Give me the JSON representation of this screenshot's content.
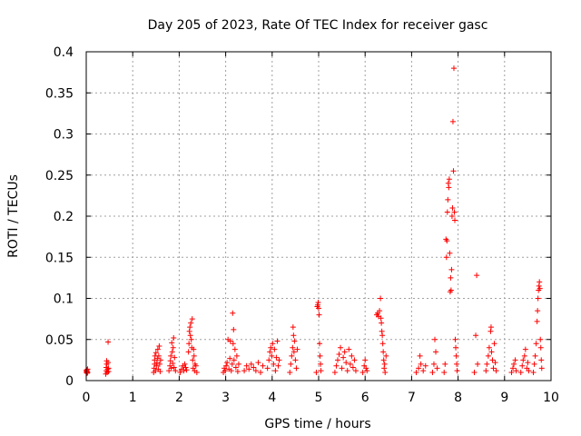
{
  "chart_data": {
    "type": "scatter",
    "title": "Day 205 of 2023, Rate Of TEC Index for receiver gasc",
    "xlabel": "GPS time / hours",
    "ylabel": "ROTI / TECUs",
    "xlim": [
      0,
      10
    ],
    "ylim": [
      0,
      0.4
    ],
    "xticks": [
      0,
      1,
      2,
      3,
      4,
      5,
      6,
      7,
      8,
      9,
      10
    ],
    "xtick_labels": [
      "0",
      "1",
      "2",
      "3",
      "4",
      "5",
      "6",
      "7",
      "8",
      "9",
      "10"
    ],
    "yticks": [
      0,
      0.05,
      0.1,
      0.15,
      0.2,
      0.25,
      0.3,
      0.35,
      0.4
    ],
    "ytick_labels": [
      "0",
      "0.05",
      "0.1",
      "0.15",
      "0.2",
      "0.25",
      "0.3",
      "0.35",
      "0.4"
    ],
    "grid": true,
    "marker": "+",
    "color": "#ff0000",
    "series": [
      {
        "name": "ROTI",
        "points": [
          [
            0.0,
            0.01
          ],
          [
            0.0,
            0.012
          ],
          [
            0.01,
            0.013
          ],
          [
            0.02,
            0.009
          ],
          [
            0.02,
            0.011
          ],
          [
            0.03,
            0.014
          ],
          [
            0.03,
            0.01
          ],
          [
            0.42,
            0.008
          ],
          [
            0.43,
            0.012
          ],
          [
            0.43,
            0.016
          ],
          [
            0.44,
            0.02
          ],
          [
            0.44,
            0.024
          ],
          [
            0.45,
            0.01
          ],
          [
            0.46,
            0.014
          ],
          [
            0.47,
            0.047
          ],
          [
            0.47,
            0.022
          ],
          [
            0.48,
            0.011
          ],
          [
            0.48,
            0.015
          ],
          [
            1.45,
            0.01
          ],
          [
            1.46,
            0.015
          ],
          [
            1.47,
            0.02
          ],
          [
            1.47,
            0.025
          ],
          [
            1.48,
            0.03
          ],
          [
            1.49,
            0.012
          ],
          [
            1.5,
            0.034
          ],
          [
            1.51,
            0.018
          ],
          [
            1.52,
            0.022
          ],
          [
            1.53,
            0.027
          ],
          [
            1.54,
            0.038
          ],
          [
            1.55,
            0.014
          ],
          [
            1.56,
            0.03
          ],
          [
            1.57,
            0.042
          ],
          [
            1.58,
            0.02
          ],
          [
            1.59,
            0.011
          ],
          [
            1.6,
            0.025
          ],
          [
            1.78,
            0.012
          ],
          [
            1.8,
            0.018
          ],
          [
            1.81,
            0.024
          ],
          [
            1.82,
            0.03
          ],
          [
            1.83,
            0.015
          ],
          [
            1.84,
            0.046
          ],
          [
            1.85,
            0.035
          ],
          [
            1.86,
            0.021
          ],
          [
            1.87,
            0.04
          ],
          [
            1.88,
            0.052
          ],
          [
            1.89,
            0.016
          ],
          [
            1.9,
            0.028
          ],
          [
            1.92,
            0.012
          ],
          [
            2.02,
            0.01
          ],
          [
            2.05,
            0.014
          ],
          [
            2.08,
            0.018
          ],
          [
            2.1,
            0.012
          ],
          [
            2.12,
            0.02
          ],
          [
            2.14,
            0.016
          ],
          [
            2.16,
            0.013
          ],
          [
            2.2,
            0.035
          ],
          [
            2.21,
            0.045
          ],
          [
            2.22,
            0.06
          ],
          [
            2.23,
            0.065
          ],
          [
            2.24,
            0.055
          ],
          [
            2.25,
            0.07
          ],
          [
            2.26,
            0.05
          ],
          [
            2.27,
            0.04
          ],
          [
            2.28,
            0.075
          ],
          [
            2.29,
            0.025
          ],
          [
            2.3,
            0.015
          ],
          [
            2.31,
            0.038
          ],
          [
            2.32,
            0.03
          ],
          [
            2.33,
            0.012
          ],
          [
            2.34,
            0.02
          ],
          [
            2.36,
            0.018
          ],
          [
            2.38,
            0.01
          ],
          [
            2.95,
            0.01
          ],
          [
            2.97,
            0.015
          ],
          [
            2.99,
            0.012
          ],
          [
            3.01,
            0.018
          ],
          [
            3.03,
            0.022
          ],
          [
            3.05,
            0.05
          ],
          [
            3.07,
            0.014
          ],
          [
            3.09,
            0.027
          ],
          [
            3.1,
            0.048
          ],
          [
            3.12,
            0.012
          ],
          [
            3.14,
            0.02
          ],
          [
            3.15,
            0.082
          ],
          [
            3.16,
            0.045
          ],
          [
            3.17,
            0.062
          ],
          [
            3.18,
            0.025
          ],
          [
            3.2,
            0.038
          ],
          [
            3.22,
            0.016
          ],
          [
            3.24,
            0.03
          ],
          [
            3.26,
            0.011
          ],
          [
            3.28,
            0.02
          ],
          [
            3.4,
            0.012
          ],
          [
            3.45,
            0.018
          ],
          [
            3.5,
            0.014
          ],
          [
            3.55,
            0.02
          ],
          [
            3.6,
            0.016
          ],
          [
            3.65,
            0.012
          ],
          [
            3.7,
            0.022
          ],
          [
            3.75,
            0.01
          ],
          [
            3.8,
            0.018
          ],
          [
            3.9,
            0.015
          ],
          [
            3.93,
            0.025
          ],
          [
            3.95,
            0.035
          ],
          [
            3.97,
            0.04
          ],
          [
            3.99,
            0.03
          ],
          [
            4.01,
            0.045
          ],
          [
            4.03,
            0.02
          ],
          [
            4.05,
            0.038
          ],
          [
            4.07,
            0.012
          ],
          [
            4.09,
            0.028
          ],
          [
            4.11,
            0.048
          ],
          [
            4.13,
            0.018
          ],
          [
            4.15,
            0.025
          ],
          [
            4.38,
            0.01
          ],
          [
            4.4,
            0.02
          ],
          [
            4.42,
            0.03
          ],
          [
            4.44,
            0.04
          ],
          [
            4.45,
            0.065
          ],
          [
            4.46,
            0.055
          ],
          [
            4.47,
            0.035
          ],
          [
            4.48,
            0.048
          ],
          [
            4.5,
            0.025
          ],
          [
            4.52,
            0.015
          ],
          [
            4.54,
            0.038
          ],
          [
            4.95,
            0.01
          ],
          [
            4.97,
            0.09
          ],
          [
            4.98,
            0.092
          ],
          [
            4.99,
            0.095
          ],
          [
            5.0,
            0.088
          ],
          [
            5.01,
            0.08
          ],
          [
            5.02,
            0.045
          ],
          [
            5.03,
            0.03
          ],
          [
            5.04,
            0.02
          ],
          [
            5.05,
            0.012
          ],
          [
            5.35,
            0.01
          ],
          [
            5.38,
            0.018
          ],
          [
            5.41,
            0.025
          ],
          [
            5.44,
            0.032
          ],
          [
            5.47,
            0.04
          ],
          [
            5.5,
            0.015
          ],
          [
            5.53,
            0.028
          ],
          [
            5.56,
            0.035
          ],
          [
            5.59,
            0.022
          ],
          [
            5.62,
            0.012
          ],
          [
            5.65,
            0.038
          ],
          [
            5.68,
            0.02
          ],
          [
            5.71,
            0.03
          ],
          [
            5.74,
            0.016
          ],
          [
            5.77,
            0.025
          ],
          [
            5.8,
            0.012
          ],
          [
            5.95,
            0.01
          ],
          [
            5.98,
            0.018
          ],
          [
            6.0,
            0.025
          ],
          [
            6.02,
            0.015
          ],
          [
            6.04,
            0.012
          ],
          [
            6.25,
            0.08
          ],
          [
            6.27,
            0.082
          ],
          [
            6.29,
            0.078
          ],
          [
            6.31,
            0.085
          ],
          [
            6.33,
            0.1
          ],
          [
            6.34,
            0.076
          ],
          [
            6.35,
            0.07
          ],
          [
            6.36,
            0.06
          ],
          [
            6.37,
            0.055
          ],
          [
            6.38,
            0.045
          ],
          [
            6.39,
            0.035
          ],
          [
            6.4,
            0.025
          ],
          [
            6.41,
            0.015
          ],
          [
            6.42,
            0.02
          ],
          [
            6.43,
            0.01
          ],
          [
            6.45,
            0.03
          ],
          [
            7.1,
            0.01
          ],
          [
            7.15,
            0.015
          ],
          [
            7.18,
            0.03
          ],
          [
            7.2,
            0.02
          ],
          [
            7.25,
            0.012
          ],
          [
            7.3,
            0.018
          ],
          [
            7.45,
            0.01
          ],
          [
            7.48,
            0.02
          ],
          [
            7.5,
            0.05
          ],
          [
            7.52,
            0.035
          ],
          [
            7.55,
            0.015
          ],
          [
            7.7,
            0.01
          ],
          [
            7.72,
            0.02
          ],
          [
            7.74,
            0.172
          ],
          [
            7.75,
            0.15
          ],
          [
            7.76,
            0.17
          ],
          [
            7.77,
            0.205
          ],
          [
            7.78,
            0.22
          ],
          [
            7.79,
            0.24
          ],
          [
            7.8,
            0.235
          ],
          [
            7.81,
            0.245
          ],
          [
            7.82,
            0.155
          ],
          [
            7.83,
            0.108
          ],
          [
            7.84,
            0.125
          ],
          [
            7.85,
            0.11
          ],
          [
            7.86,
            0.135
          ],
          [
            7.87,
            0.2
          ],
          [
            7.88,
            0.21
          ],
          [
            7.89,
            0.315
          ],
          [
            7.9,
            0.255
          ],
          [
            7.91,
            0.38
          ],
          [
            7.92,
            0.205
          ],
          [
            7.93,
            0.195
          ],
          [
            7.94,
            0.05
          ],
          [
            7.95,
            0.04
          ],
          [
            7.96,
            0.03
          ],
          [
            7.97,
            0.02
          ],
          [
            7.98,
            0.012
          ],
          [
            8.35,
            0.01
          ],
          [
            8.38,
            0.055
          ],
          [
            8.4,
            0.128
          ],
          [
            8.42,
            0.02
          ],
          [
            8.6,
            0.012
          ],
          [
            8.62,
            0.02
          ],
          [
            8.65,
            0.03
          ],
          [
            8.67,
            0.04
          ],
          [
            8.7,
            0.06
          ],
          [
            8.71,
            0.065
          ],
          [
            8.72,
            0.035
          ],
          [
            8.74,
            0.025
          ],
          [
            8.76,
            0.015
          ],
          [
            8.78,
            0.045
          ],
          [
            8.8,
            0.022
          ],
          [
            8.82,
            0.012
          ],
          [
            9.15,
            0.01
          ],
          [
            9.18,
            0.015
          ],
          [
            9.2,
            0.02
          ],
          [
            9.23,
            0.025
          ],
          [
            9.25,
            0.012
          ],
          [
            9.35,
            0.01
          ],
          [
            9.38,
            0.018
          ],
          [
            9.4,
            0.025
          ],
          [
            9.43,
            0.03
          ],
          [
            9.45,
            0.038
          ],
          [
            9.48,
            0.015
          ],
          [
            9.5,
            0.022
          ],
          [
            9.52,
            0.012
          ],
          [
            9.62,
            0.01
          ],
          [
            9.64,
            0.02
          ],
          [
            9.66,
            0.03
          ],
          [
            9.68,
            0.045
          ],
          [
            9.7,
            0.072
          ],
          [
            9.71,
            0.085
          ],
          [
            9.72,
            0.1
          ],
          [
            9.73,
            0.11
          ],
          [
            9.74,
            0.115
          ],
          [
            9.75,
            0.12
          ],
          [
            9.76,
            0.112
          ],
          [
            9.77,
            0.05
          ],
          [
            9.78,
            0.04
          ],
          [
            9.79,
            0.025
          ],
          [
            9.8,
            0.015
          ]
        ]
      }
    ]
  }
}
